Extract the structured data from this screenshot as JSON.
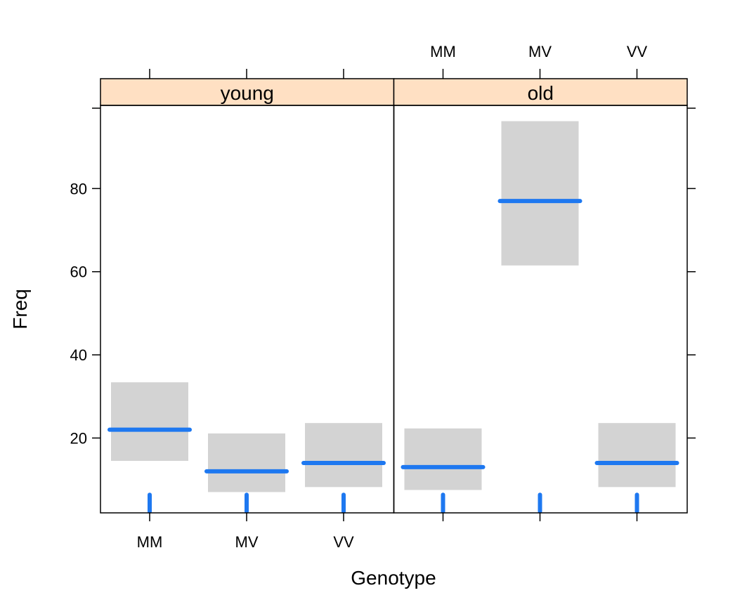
{
  "chart_data": {
    "type": "bar",
    "xlabel": "Genotype",
    "ylabel": "Freq",
    "categories": [
      "MM",
      "MV",
      "VV"
    ],
    "yticks": [
      20,
      40,
      60,
      80
    ],
    "ylim": [
      2,
      100
    ],
    "panels": [
      {
        "label": "young",
        "estimates": [
          22,
          12,
          14
        ],
        "lower": [
          14.5,
          7,
          8.2
        ],
        "upper": [
          33.4,
          21.1,
          23.6
        ],
        "rug": [
          5,
          5,
          5
        ]
      },
      {
        "label": "old",
        "estimates": [
          13,
          77,
          14
        ],
        "lower": [
          7.5,
          61.5,
          8.2
        ],
        "upper": [
          22.3,
          96.2,
          23.6
        ],
        "rug": [
          5,
          5,
          5
        ]
      }
    ],
    "colors": {
      "estimate": "#1e78f0",
      "interval": "#d3d3d3",
      "strip": "#ffe0c3",
      "axis": "#000000"
    },
    "grid": false,
    "legend": "none"
  }
}
